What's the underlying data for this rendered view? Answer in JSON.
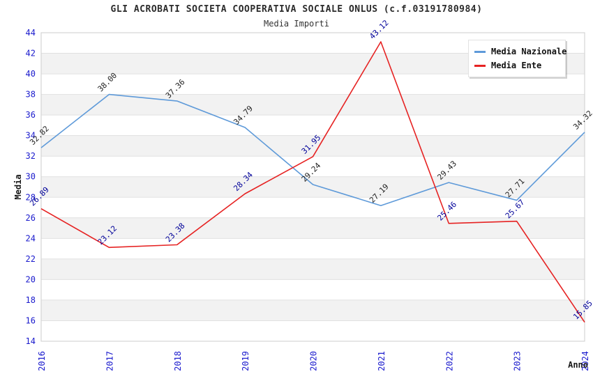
{
  "header": {
    "title": "GLI ACROBATI SOCIETA COOPERATIVA SOCIALE ONLUS (c.f.03191780984)",
    "subtitle": "Media Importi"
  },
  "legend": {
    "position": "top-right",
    "items": [
      {
        "label": "Media Nazionale",
        "color": "#5e9ad9"
      },
      {
        "label": "Media Ente",
        "color": "#e62222"
      }
    ]
  },
  "chart_data": {
    "type": "line",
    "title": "GLI ACROBATI SOCIETA COOPERATIVA SOCIALE ONLUS (c.f.03191780984)",
    "subtitle": "Media Importi",
    "xlabel": "Anno",
    "ylabel": "Media",
    "x": [
      "2016",
      "2017",
      "2018",
      "2019",
      "2020",
      "2021",
      "2022",
      "2023",
      "2024"
    ],
    "series": [
      {
        "name": "Media Nazionale",
        "color": "#5e9ad9",
        "label_color": "#222222",
        "values": [
          32.82,
          38.0,
          37.36,
          34.79,
          29.24,
          27.19,
          29.43,
          27.71,
          34.32
        ],
        "value_labels": [
          "32.82",
          "38.00",
          "37.36",
          "34.79",
          "29.24",
          "27.19",
          "29.43",
          "27.71",
          "34.32"
        ]
      },
      {
        "name": "Media Ente",
        "color": "#e62222",
        "label_color": "#000099",
        "values": [
          26.89,
          23.12,
          23.38,
          28.34,
          31.95,
          43.12,
          25.46,
          25.67,
          15.85
        ],
        "value_labels": [
          "26.89",
          "23.12",
          "23.38",
          "28.34",
          "31.95",
          "43.12",
          "25.46",
          "25.67",
          "15.85"
        ]
      }
    ],
    "ylim": [
      14,
      44
    ],
    "ytick_step": 2,
    "grid": true,
    "band_colors": [
      "#ffffff",
      "#f2f2f2"
    ],
    "grid_color": "#e0e0e0",
    "border_color": "#d4d4d4",
    "axis_tick_label_color": "#1a1acd",
    "axis_title_color": "#1a1a1a",
    "legend_position": "top-right"
  }
}
